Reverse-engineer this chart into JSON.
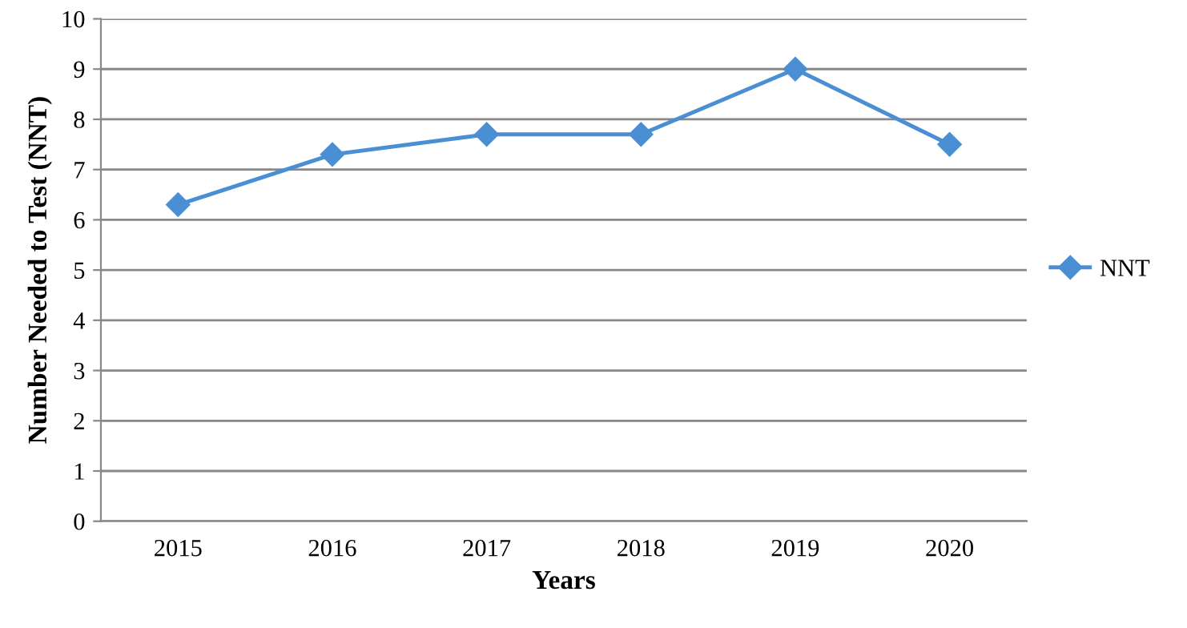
{
  "chart_data": {
    "type": "line",
    "xlabel": "Years",
    "ylabel": "Number Needed to Test (NNT)",
    "categories": [
      "2015",
      "2016",
      "2017",
      "2018",
      "2019",
      "2020"
    ],
    "series": [
      {
        "name": "NNT",
        "color": "#4a8fd4",
        "values": [
          6.3,
          7.3,
          7.7,
          7.7,
          9.0,
          7.5
        ]
      }
    ],
    "ylim": [
      0,
      10
    ],
    "yticks": [
      0,
      1,
      2,
      3,
      4,
      5,
      6,
      7,
      8,
      9,
      10
    ],
    "grid": "y",
    "legend": "right",
    "marker": "diamond",
    "line_style": "solid"
  }
}
